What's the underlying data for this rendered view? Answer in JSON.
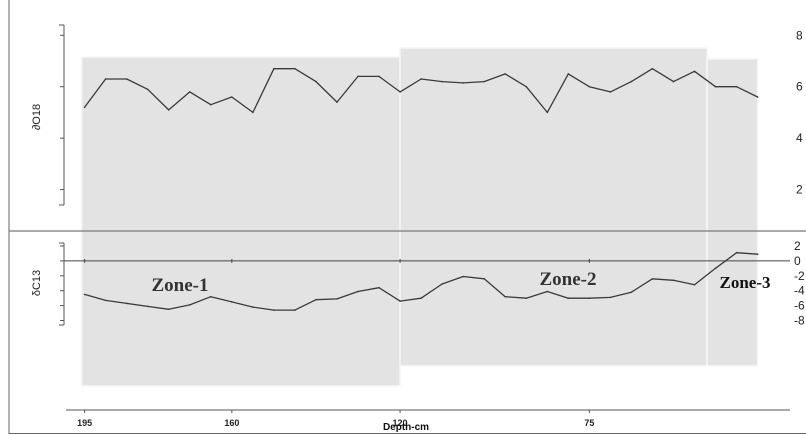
{
  "chart_data": {
    "type": "line",
    "xlabel": "Depth-cm",
    "x_ticks": [
      "195",
      "160",
      "120",
      "75"
    ],
    "x_tick_values": [
      195,
      160,
      120,
      75
    ],
    "xlim": [
      198,
      33
    ],
    "x": [
      195,
      190,
      185,
      180,
      175,
      170,
      165,
      160,
      155,
      150,
      145,
      140,
      135,
      130,
      125,
      120,
      115,
      110,
      105,
      100,
      95,
      90,
      85,
      80,
      75,
      70,
      65,
      60,
      55,
      50,
      45,
      40,
      35
    ],
    "panels": [
      {
        "ylabel": "∂O18",
        "y_ticks": [
          "8",
          "6",
          "4",
          "2"
        ],
        "y_tick_values": [
          8,
          6,
          4,
          2
        ],
        "ylim": [
          1.4,
          8.4
        ],
        "series": [
          {
            "values": [
              5.2,
              6.3,
              6.3,
              5.9,
              5.1,
              5.8,
              5.3,
              5.6,
              5.0,
              6.7,
              6.7,
              6.2,
              5.4,
              6.4,
              6.4,
              5.8,
              6.3,
              6.2,
              6.15,
              6.2,
              6.5,
              6.0,
              5.0,
              6.5,
              6.0,
              5.8,
              6.2,
              6.7,
              6.2,
              6.6,
              6.0,
              6.0,
              5.6
            ]
          }
        ]
      },
      {
        "ylabel": "δC13",
        "y_ticks": [
          "2",
          "0",
          "-2",
          "-4",
          "-6",
          "-8"
        ],
        "y_tick_values": [
          2,
          0,
          -2,
          -4,
          -6,
          -8
        ],
        "ylim": [
          -8.6,
          2.4
        ],
        "series": [
          {
            "values": [
              -4.5,
              -5.3,
              -5.7,
              -6.1,
              -6.5,
              -5.9,
              -4.8,
              -5.5,
              -6.2,
              -6.6,
              -6.6,
              -5.2,
              -5.1,
              -4.1,
              -3.6,
              -5.4,
              -5.0,
              -3.1,
              -2.1,
              -2.4,
              -4.8,
              -5.0,
              -4.1,
              -5.0,
              -5.0,
              -4.9,
              -4.2,
              -2.4,
              -2.6,
              -3.2,
              -1.0,
              1.1,
              0.9
            ]
          }
        ]
      }
    ],
    "zones": [
      {
        "label": "Zone-1",
        "x_range": [
          195,
          120
        ]
      },
      {
        "label": "Zone-2",
        "x_range": [
          120,
          47
        ]
      },
      {
        "label": "Zone-3",
        "x_range": [
          47,
          35
        ]
      }
    ],
    "grid": false,
    "legend": "none",
    "colors": {
      "line": "#3a3a3a",
      "zone_fill": "#e3e3e3",
      "axis": "#555555",
      "divider": "#777777"
    }
  }
}
